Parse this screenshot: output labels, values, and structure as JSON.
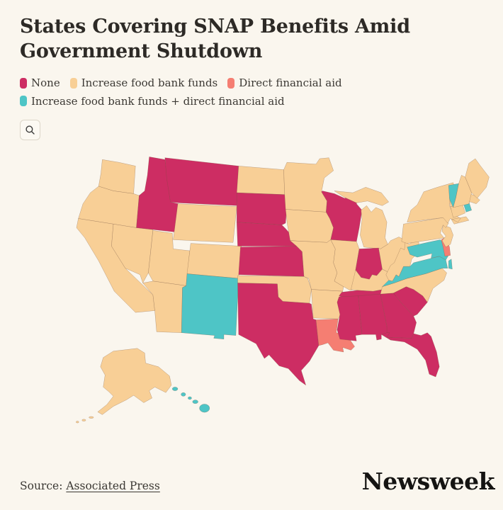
{
  "header": {
    "title": "States Covering SNAP Benefits Amid Government Shutdown"
  },
  "legend": {
    "items": [
      {
        "key": "none",
        "label": "None",
        "color": "#cd2d63"
      },
      {
        "key": "food_bank",
        "label": "Increase food bank funds",
        "color": "#f8cf96"
      },
      {
        "key": "direct",
        "label": "Direct financial aid",
        "color": "#f57e72"
      },
      {
        "key": "both",
        "label": "Increase food bank funds + direct financial aid",
        "color": "#4ec5c6"
      }
    ]
  },
  "controls": {
    "search_icon": "magnifier-icon"
  },
  "chart_data": {
    "type": "heatmap",
    "title": "States Covering SNAP Benefits Amid Government Shutdown",
    "legend_position": "top",
    "categories": [
      "None",
      "Increase food bank funds",
      "Direct financial aid",
      "Increase food bank funds + direct financial aid"
    ],
    "states": {
      "WA": "food_bank",
      "OR": "food_bank",
      "CA": "food_bank",
      "NV": "food_bank",
      "ID": "none",
      "MT": "none",
      "WY": "food_bank",
      "UT": "food_bank",
      "CO": "food_bank",
      "AZ": "food_bank",
      "NM": "both",
      "ND": "food_bank",
      "SD": "none",
      "NE": "none",
      "KS": "none",
      "OK": "food_bank",
      "TX": "none",
      "MN": "food_bank",
      "IA": "food_bank",
      "MO": "food_bank",
      "AR": "food_bank",
      "LA": "direct",
      "WI": "none",
      "IL": "food_bank",
      "MI": "food_bank",
      "IN": "none",
      "OH": "food_bank",
      "KY": "food_bank",
      "TN": "none",
      "MS": "none",
      "AL": "none",
      "GA": "none",
      "FL": "none",
      "SC": "none",
      "NC": "food_bank",
      "VA": "both",
      "WV": "food_bank",
      "MD": "both",
      "DE": "direct",
      "NJ": "food_bank",
      "PA": "food_bank",
      "NY": "food_bank",
      "CT": "food_bank",
      "RI": "both",
      "MA": "food_bank",
      "VT": "both",
      "NH": "food_bank",
      "ME": "food_bank",
      "AK": "food_bank",
      "HI": "both"
    }
  },
  "footer": {
    "source_label": "Source:",
    "source_link": "Associated Press",
    "brand": "Newsweek"
  }
}
